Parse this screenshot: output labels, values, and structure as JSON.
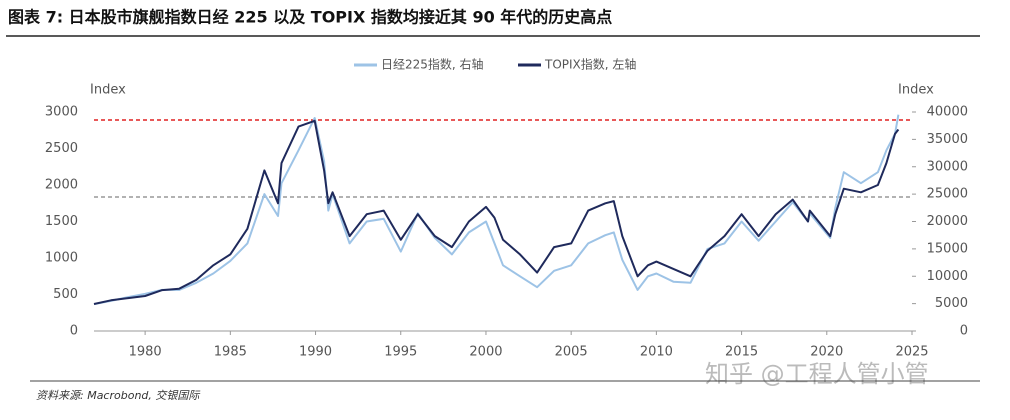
{
  "chart_data": {
    "type": "line",
    "title": "图表 7: 日本股市旗舰指数日经 225 以及 TOPIX 指数均接近其 90 年代的历史高点",
    "y_label": "Index",
    "y2_label": "Index",
    "source": "资料来源: Macrobond, 交银国际",
    "watermark": "知乎 @工程人管小管",
    "x": [
      1977,
      1978,
      1979,
      1980,
      1981,
      1982,
      1983,
      1984,
      1985,
      1986,
      1987,
      1987.8,
      1988,
      1989,
      1989.95,
      1990.5,
      1990.75,
      1991,
      1992,
      1993,
      1994,
      1995,
      1996,
      1997,
      1998,
      1999,
      2000,
      2000.5,
      2001,
      2002,
      2003,
      2004,
      2005,
      2006,
      2007,
      2007.5,
      2008,
      2008.9,
      2009.5,
      2010,
      2011,
      2012,
      2013,
      2014,
      2015,
      2016,
      2017,
      2018,
      2018.9,
      2019,
      2020.2,
      2020.5,
      2021,
      2022,
      2023,
      2023.5,
      2024,
      2024.2
    ],
    "series": [
      {
        "name": "日经225指数, 右轴",
        "color": "#9dc3e6",
        "axis": "y2",
        "values": [
          4900,
          5500,
          6200,
          6800,
          7500,
          7500,
          8800,
          10500,
          12800,
          16000,
          25000,
          21000,
          27000,
          33000,
          38900,
          31000,
          22000,
          25000,
          16000,
          20000,
          20500,
          14500,
          21500,
          17000,
          14000,
          18000,
          20000,
          16000,
          12000,
          10000,
          8000,
          11000,
          12000,
          16000,
          17500,
          18000,
          13000,
          7500,
          10000,
          10500,
          9000,
          8800,
          15000,
          16000,
          20000,
          16500,
          20000,
          23500,
          20000,
          21500,
          17000,
          22500,
          29000,
          27000,
          29000,
          33000,
          36000,
          39500
        ]
      },
      {
        "name": "TOPIX指数, 左轴",
        "color": "#1f2a5c",
        "axis": "y",
        "values": [
          370,
          420,
          450,
          480,
          560,
          580,
          700,
          900,
          1050,
          1400,
          2200,
          1750,
          2300,
          2800,
          2880,
          2200,
          1750,
          1900,
          1300,
          1600,
          1650,
          1250,
          1600,
          1300,
          1150,
          1500,
          1700,
          1550,
          1250,
          1050,
          800,
          1150,
          1200,
          1650,
          1750,
          1780,
          1300,
          750,
          900,
          950,
          850,
          750,
          1100,
          1300,
          1600,
          1300,
          1600,
          1800,
          1500,
          1650,
          1300,
          1600,
          1950,
          1900,
          2000,
          2300,
          2700,
          2760
        ]
      }
    ],
    "reference_lines": [
      {
        "value": 2890,
        "color": "#e02020"
      },
      {
        "value": 1835,
        "color": "#999999"
      }
    ],
    "xlim": [
      1977,
      2025
    ],
    "xticks": [
      1980,
      1985,
      1990,
      1995,
      2000,
      2005,
      2010,
      2015,
      2020,
      2025
    ],
    "ylim": [
      0,
      3000
    ],
    "yticks": [
      0,
      500,
      1000,
      1500,
      2000,
      2500,
      3000
    ],
    "y2lim": [
      0,
      40000
    ],
    "y2ticks": [
      0,
      5000,
      10000,
      15000,
      20000,
      25000,
      30000,
      35000,
      40000
    ]
  }
}
